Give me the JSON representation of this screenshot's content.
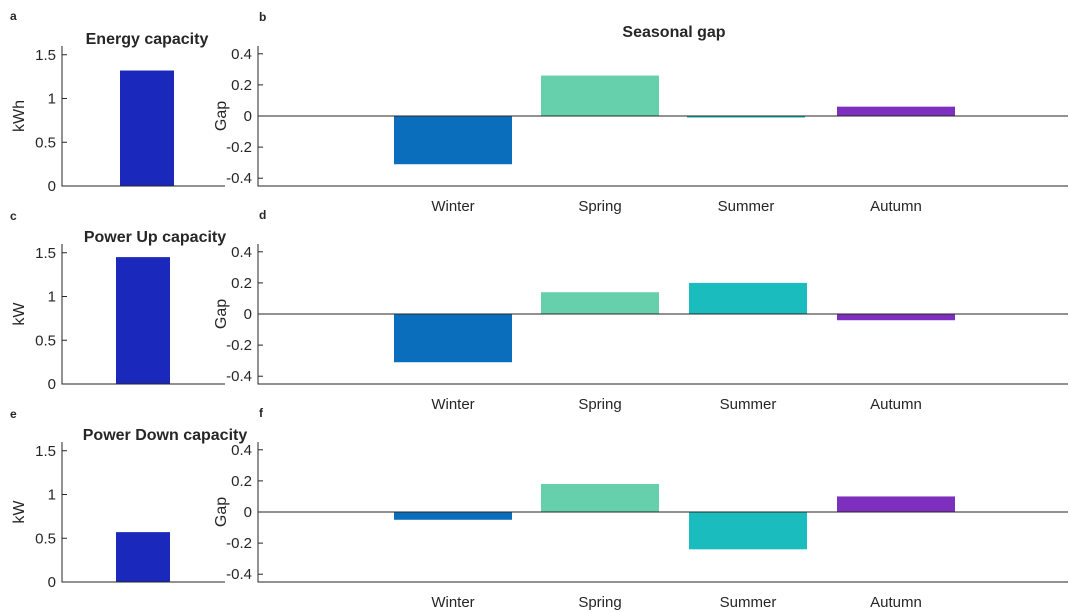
{
  "chart_data": [
    {
      "panel": "a",
      "type": "bar",
      "title": "Energy capacity",
      "ylabel": "kWh",
      "xlabel": "",
      "ylim": [
        0,
        1.6
      ],
      "yticks": [
        "0",
        "0.5",
        "1",
        "1.5"
      ],
      "categories": [
        ""
      ],
      "values": [
        1.32
      ],
      "colors": [
        "#1a28bc"
      ]
    },
    {
      "panel": "b",
      "type": "bar",
      "title": "Seasonal gap",
      "ylabel": "Gap",
      "xlabel": "",
      "ylim": [
        -0.45,
        0.45
      ],
      "yticks": [
        "-0.4",
        "-0.2",
        "0",
        "0.2",
        "0.4"
      ],
      "categories": [
        "Winter",
        "Spring",
        "Summer",
        "Autumn"
      ],
      "values": [
        -0.31,
        0.26,
        -0.01,
        0.06
      ],
      "colors": [
        "#0a6ebd",
        "#66cfac",
        "#1bbcbd",
        "#7e2fbe"
      ]
    },
    {
      "panel": "c",
      "type": "bar",
      "title": "Power Up capacity",
      "ylabel": "kW",
      "xlabel": "",
      "ylim": [
        0,
        1.6
      ],
      "yticks": [
        "0",
        "0.5",
        "1",
        "1.5"
      ],
      "categories": [
        ""
      ],
      "values": [
        1.45
      ],
      "colors": [
        "#1a28bc"
      ]
    },
    {
      "panel": "d",
      "type": "bar",
      "title": "",
      "ylabel": "Gap",
      "xlabel": "",
      "ylim": [
        -0.45,
        0.45
      ],
      "yticks": [
        "-0.4",
        "-0.2",
        "0",
        "0.2",
        "0.4"
      ],
      "categories": [
        "Winter",
        "Spring",
        "Summer",
        "Autumn"
      ],
      "values": [
        -0.31,
        0.14,
        0.2,
        -0.04
      ],
      "colors": [
        "#0a6ebd",
        "#66cfac",
        "#1bbcbd",
        "#7e2fbe"
      ]
    },
    {
      "panel": "e",
      "type": "bar",
      "title": "Power Down capacity",
      "ylabel": "kW",
      "xlabel": "",
      "ylim": [
        0,
        1.6
      ],
      "yticks": [
        "0",
        "0.5",
        "1",
        "1.5"
      ],
      "categories": [
        ""
      ],
      "values": [
        0.57
      ],
      "colors": [
        "#1a28bc"
      ]
    },
    {
      "panel": "f",
      "type": "bar",
      "title": "",
      "ylabel": "Gap",
      "xlabel": "",
      "ylim": [
        -0.45,
        0.45
      ],
      "yticks": [
        "-0.4",
        "-0.2",
        "0",
        "0.2",
        "0.4"
      ],
      "categories": [
        "Winter",
        "Spring",
        "Summer",
        "Autumn"
      ],
      "values": [
        -0.05,
        0.18,
        -0.24,
        0.1
      ],
      "colors": [
        "#0a6ebd",
        "#66cfac",
        "#1bbcbd",
        "#7e2fbe"
      ]
    }
  ]
}
